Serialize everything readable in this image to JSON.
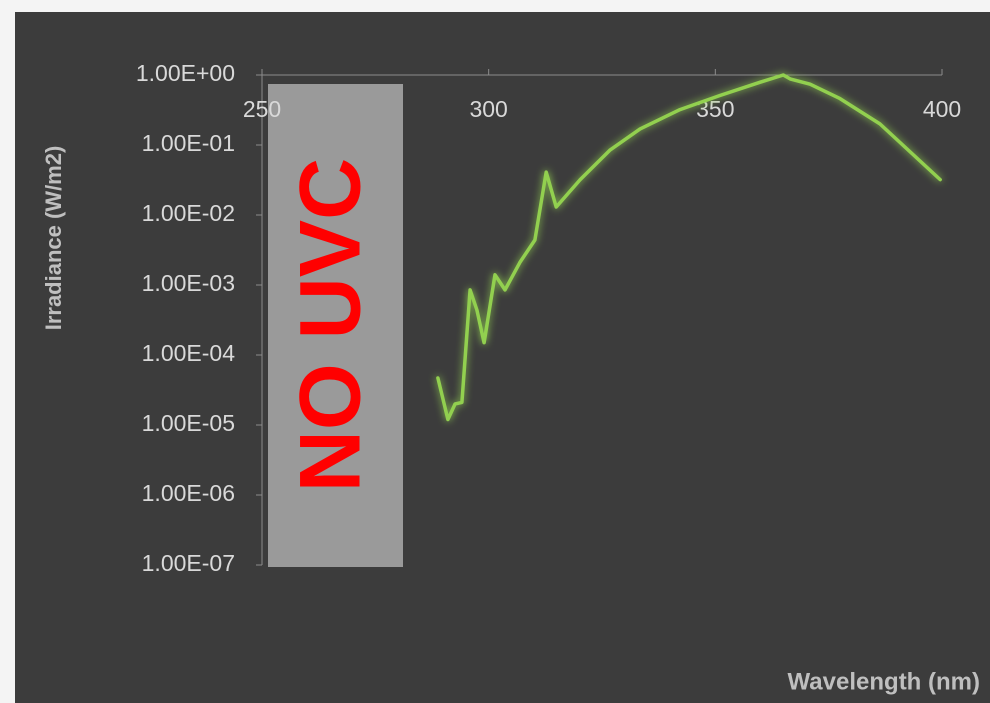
{
  "chart_data": {
    "type": "line",
    "x_label": "Wavelength (nm)",
    "y_label": "Irradiance (W/m2)",
    "annotation": "NO UVC",
    "x": [
      288.8,
      291.0,
      292.6,
      294.1,
      295.9,
      297.4,
      299.0,
      301.4,
      303.6,
      306.9,
      310.2,
      312.7,
      314.9,
      320.2,
      326.8,
      333.4,
      342.2,
      351.0,
      359.9,
      365.0,
      366.5,
      370.9,
      377.5,
      386.3,
      399.6
    ],
    "values": [
      4.7e-05,
      1.2e-05,
      2e-05,
      2.1e-05,
      0.00085,
      0.00044,
      0.00015,
      0.0014,
      0.00085,
      0.0021,
      0.0044,
      0.041,
      0.013,
      0.032,
      0.085,
      0.17,
      0.32,
      0.51,
      0.79,
      1,
      0.88,
      0.74,
      0.46,
      0.2,
      0.032
    ],
    "color": "#92d050",
    "xlim": [
      250,
      400
    ],
    "xticks": [
      250,
      300,
      350,
      400
    ],
    "ylim": [
      1e-07,
      1
    ],
    "ylog": true,
    "yticks": [
      {
        "value": 1,
        "label": "1.00E+00"
      },
      {
        "value": 0.1,
        "label": "1.00E-01"
      },
      {
        "value": 0.01,
        "label": "1.00E-02"
      },
      {
        "value": 0.001,
        "label": "1.00E-03"
      },
      {
        "value": 0.0001,
        "label": "1.00E-04"
      },
      {
        "value": 1e-05,
        "label": "1.00E-05"
      },
      {
        "value": 1e-06,
        "label": "1.00E-06"
      },
      {
        "value": 1e-07,
        "label": "1.00E-07"
      }
    ]
  }
}
